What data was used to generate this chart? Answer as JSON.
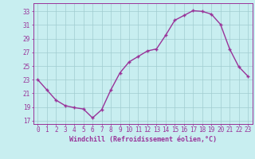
{
  "x": [
    0,
    1,
    2,
    3,
    4,
    5,
    6,
    7,
    8,
    9,
    10,
    11,
    12,
    13,
    14,
    15,
    16,
    17,
    18,
    19,
    20,
    21,
    22,
    23
  ],
  "y": [
    23,
    21.5,
    20.0,
    19.2,
    18.9,
    18.7,
    17.4,
    18.6,
    21.5,
    24.0,
    25.6,
    26.4,
    27.2,
    27.5,
    29.5,
    31.7,
    32.4,
    33.1,
    33.0,
    32.6,
    31.1,
    27.5,
    24.9,
    23.5
  ],
  "line_color": "#993399",
  "marker": "+",
  "bg_color": "#c8eef0",
  "grid_color": "#a0ccd0",
  "xlabel": "Windchill (Refroidissement éolien,°C)",
  "ylabel_ticks": [
    17,
    19,
    21,
    23,
    25,
    27,
    29,
    31,
    33
  ],
  "xlim": [
    -0.5,
    23.5
  ],
  "ylim": [
    16.5,
    34.2
  ],
  "xtick_labels": [
    "0",
    "1",
    "2",
    "3",
    "4",
    "5",
    "6",
    "7",
    "8",
    "9",
    "10",
    "11",
    "12",
    "13",
    "14",
    "15",
    "16",
    "17",
    "18",
    "19",
    "20",
    "21",
    "22",
    "23"
  ],
  "axis_fontsize": 6.0,
  "tick_fontsize": 5.5,
  "linewidth": 1.0,
  "markersize": 3.5,
  "markeredgewidth": 1.0
}
